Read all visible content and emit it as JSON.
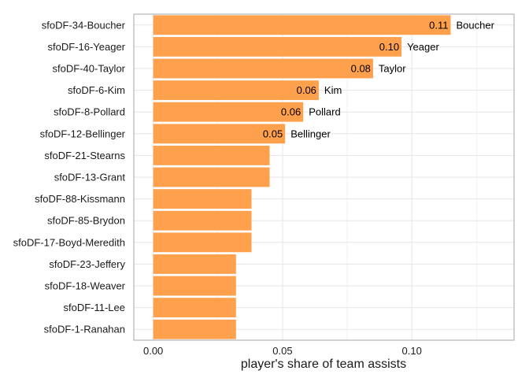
{
  "chart_data": {
    "type": "bar",
    "orientation": "horizontal",
    "categories": [
      "sfoDF-34-Boucher",
      "sfoDF-16-Yeager",
      "sfoDF-40-Taylor",
      "sfoDF-6-Kim",
      "sfoDF-8-Pollard",
      "sfoDF-12-Bellinger",
      "sfoDF-21-Stearns",
      "sfoDF-13-Grant",
      "sfoDF-88-Kissmann",
      "sfoDF-85-Brydon",
      "sfoDF-17-Boyd-Meredith",
      "sfoDF-23-Jeffery",
      "sfoDF-18-Weaver",
      "sfoDF-11-Lee",
      "sfoDF-1-Ranahan"
    ],
    "values": [
      0.115,
      0.096,
      0.085,
      0.064,
      0.058,
      0.051,
      0.045,
      0.045,
      0.038,
      0.038,
      0.038,
      0.032,
      0.032,
      0.032,
      0.032
    ],
    "value_labels": [
      "0.11",
      "0.10",
      "0.08",
      "0.06",
      "0.06",
      "0.05",
      "",
      "",
      "",
      "",
      "",
      "",
      "",
      "",
      ""
    ],
    "name_labels": [
      "Boucher",
      "Yeager",
      "Taylor",
      "Kim",
      "Pollard",
      "Bellinger",
      "",
      "",
      "",
      "",
      "",
      "",
      "",
      "",
      ""
    ],
    "xlabel": "player's share of team assists",
    "ylabel": "",
    "title": "",
    "xlim": [
      -0.0075,
      0.1395
    ],
    "x_ticks": [
      {
        "value": 0.0,
        "label": "0.00"
      },
      {
        "value": 0.05,
        "label": "0.05"
      },
      {
        "value": 0.1,
        "label": "0.10"
      }
    ],
    "x_minor_ticks": [
      0.025,
      0.075,
      0.125
    ],
    "grid": true,
    "bar_color": "#ffa04c",
    "legend": "none"
  }
}
